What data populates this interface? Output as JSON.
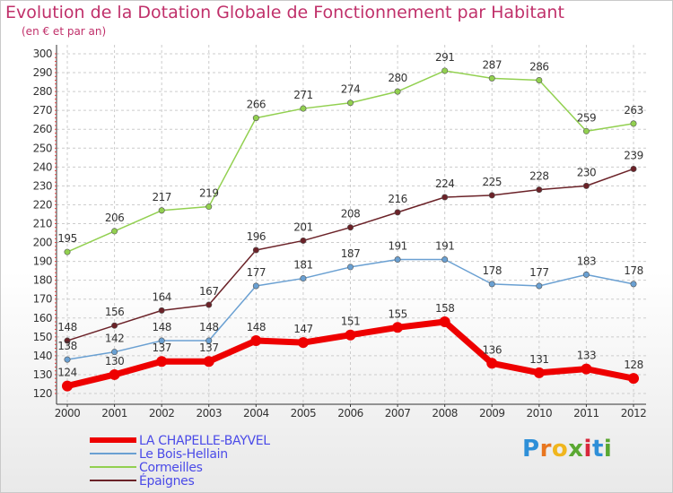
{
  "title": "Evolution de la Dotation Globale de Fonctionnement par Habitant",
  "subtitle": "(en € et par an)",
  "chart_data": {
    "type": "line",
    "x": [
      "2000",
      "2001",
      "2002",
      "2003",
      "2004",
      "2005",
      "2006",
      "2007",
      "2008",
      "2009",
      "2010",
      "2011",
      "2012"
    ],
    "ylim": [
      120,
      300
    ],
    "yticks": [
      120,
      130,
      140,
      150,
      160,
      170,
      180,
      190,
      200,
      210,
      220,
      230,
      240,
      250,
      260,
      270,
      280,
      290,
      300
    ],
    "grid": true,
    "legend_position": "bottom-left",
    "series": [
      {
        "name": "Cormeilles",
        "color": "#92d050",
        "values": [
          195,
          206,
          217,
          219,
          266,
          271,
          274,
          280,
          291,
          287,
          286,
          259,
          263
        ]
      },
      {
        "name": "Épaignes",
        "color": "#6b2228",
        "values": [
          148,
          156,
          164,
          167,
          196,
          201,
          208,
          216,
          224,
          225,
          228,
          230,
          239
        ]
      },
      {
        "name": "Le Bois-Hellain",
        "color": "#6aa0d2",
        "values": [
          138,
          142,
          148,
          148,
          177,
          181,
          187,
          191,
          191,
          178,
          177,
          183,
          178
        ]
      },
      {
        "name": "LA CHAPELLE-BAYVEL",
        "color": "#ee0000",
        "values": [
          124,
          130,
          137,
          137,
          148,
          147,
          151,
          155,
          158,
          136,
          131,
          133,
          128
        ]
      }
    ]
  },
  "legend": [
    {
      "label": "LA CHAPELLE-BAYVEL",
      "color": "#ee0000"
    },
    {
      "label": "Le Bois-Hellain",
      "color": "#6aa0d2"
    },
    {
      "label": "Cormeilles",
      "color": "#92d050"
    },
    {
      "label": "Épaignes",
      "color": "#6b2228"
    }
  ],
  "logo": {
    "text": "Proxiti",
    "letter_colors": [
      "#2e8fd8",
      "#e8761f",
      "#f0b61e",
      "#5aa832",
      "#d8283c",
      "#2e8fd8",
      "#5aa832"
    ]
  }
}
